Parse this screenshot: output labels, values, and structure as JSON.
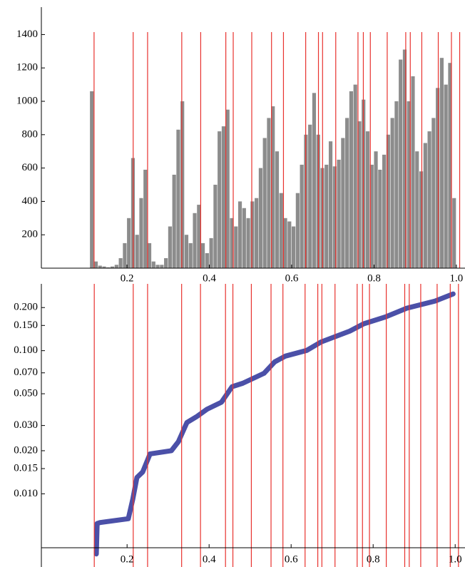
{
  "chart_data": [
    {
      "type": "histogram",
      "bins": [
        0.1,
        0.11,
        0.12,
        0.13,
        0.14,
        0.15,
        0.16,
        0.17,
        0.18,
        0.19,
        0.2,
        0.21,
        0.22,
        0.23,
        0.24,
        0.25,
        0.26,
        0.27,
        0.28,
        0.29,
        0.3,
        0.31,
        0.32,
        0.33,
        0.34,
        0.35,
        0.36,
        0.37,
        0.38,
        0.39,
        0.4,
        0.41,
        0.42,
        0.43,
        0.44,
        0.45,
        0.46,
        0.47,
        0.48,
        0.49,
        0.5,
        0.51,
        0.52,
        0.53,
        0.54,
        0.55,
        0.56,
        0.57,
        0.58,
        0.59,
        0.6,
        0.61,
        0.62,
        0.63,
        0.64,
        0.65,
        0.66,
        0.67,
        0.68,
        0.69,
        0.7,
        0.71,
        0.72,
        0.73,
        0.74,
        0.75,
        0.76,
        0.77,
        0.78,
        0.79,
        0.8,
        0.81,
        0.82,
        0.83,
        0.84,
        0.85,
        0.86,
        0.87,
        0.88,
        0.89,
        0.9,
        0.91,
        0.92,
        0.93,
        0.94,
        0.95,
        0.96,
        0.97,
        0.98,
        0.99,
        1.0
      ],
      "values": [
        0,
        1060,
        40,
        15,
        10,
        5,
        10,
        20,
        60,
        150,
        300,
        660,
        200,
        420,
        590,
        150,
        40,
        20,
        20,
        60,
        250,
        560,
        830,
        1000,
        200,
        150,
        330,
        380,
        150,
        90,
        180,
        500,
        820,
        850,
        950,
        300,
        250,
        400,
        360,
        300,
        400,
        420,
        600,
        780,
        900,
        970,
        700,
        450,
        300,
        280,
        250,
        450,
        620,
        800,
        860,
        1050,
        800,
        600,
        620,
        760,
        610,
        650,
        780,
        900,
        1060,
        1100,
        880,
        1010,
        820,
        620,
        700,
        590,
        680,
        800,
        900,
        1000,
        1250,
        1310,
        1000,
        1150,
        700,
        580,
        750,
        820,
        900,
        1080,
        1260,
        1100,
        1230,
        420
      ],
      "color": "#8c8c8c",
      "xlim": [
        -0.008,
        1.014
      ],
      "ylim": [
        0,
        1560
      ],
      "xticks": [
        0.2,
        0.4,
        0.6,
        0.8,
        {
          "value": 1,
          "label": "1.0"
        }
      ],
      "yticks": [
        200,
        400,
        600,
        800,
        1000,
        1200,
        1400
      ],
      "vlines": [
        0.12,
        0.215,
        0.25,
        0.333,
        0.379,
        0.44,
        0.458,
        0.503,
        0.551,
        0.58,
        0.634,
        0.665,
        0.675,
        0.707,
        0.761,
        0.774,
        0.791,
        0.832,
        0.877,
        0.888,
        0.916,
        0.956,
        0.988,
        1.008
      ],
      "vline_color": "#e8322e"
    },
    {
      "type": "line",
      "x": [
        0.125,
        0.127,
        0.134,
        0.203,
        0.214,
        0.224,
        0.238,
        0.256,
        0.308,
        0.325,
        0.346,
        0.369,
        0.395,
        0.43,
        0.456,
        0.482,
        0.534,
        0.56,
        0.586,
        0.638,
        0.673,
        0.743,
        0.777,
        0.83,
        0.882,
        0.951,
        0.995
      ],
      "values": [
        0.0038,
        0.0062,
        0.0063,
        0.0067,
        0.0092,
        0.013,
        0.0142,
        0.019,
        0.02,
        0.0231,
        0.0315,
        0.0345,
        0.039,
        0.0436,
        0.056,
        0.0592,
        0.0695,
        0.0835,
        0.0916,
        0.1004,
        0.115,
        0.137,
        0.154,
        0.172,
        0.198,
        0.222,
        0.249
      ],
      "color": "#4b50a8",
      "log_y": true,
      "xlim": [
        -0.009,
        1.017
      ],
      "ylim": [
        0.0042,
        0.36
      ],
      "xticks": [
        0.2,
        0.4,
        0.6,
        0.8,
        {
          "value": 1,
          "label": "1.0"
        }
      ],
      "yticks": [
        {
          "value": 0.01,
          "label": "0.010"
        },
        {
          "value": 0.015,
          "label": "0.015"
        },
        {
          "value": 0.02,
          "label": "0.020"
        },
        {
          "value": 0.03,
          "label": "0.030"
        },
        {
          "value": 0.05,
          "label": "0.050"
        },
        {
          "value": 0.07,
          "label": "0.070"
        },
        {
          "value": 0.1,
          "label": "0.100"
        },
        {
          "value": 0.15,
          "label": "0.150"
        },
        {
          "value": 0.2,
          "label": "0.200"
        }
      ],
      "vlines": [
        0.12,
        0.215,
        0.25,
        0.333,
        0.379,
        0.44,
        0.458,
        0.503,
        0.551,
        0.58,
        0.634,
        0.665,
        0.675,
        0.707,
        0.761,
        0.774,
        0.791,
        0.832,
        0.877,
        0.888,
        0.916,
        0.956,
        0.988,
        1.008
      ],
      "vline_color": "#e8322e"
    }
  ]
}
